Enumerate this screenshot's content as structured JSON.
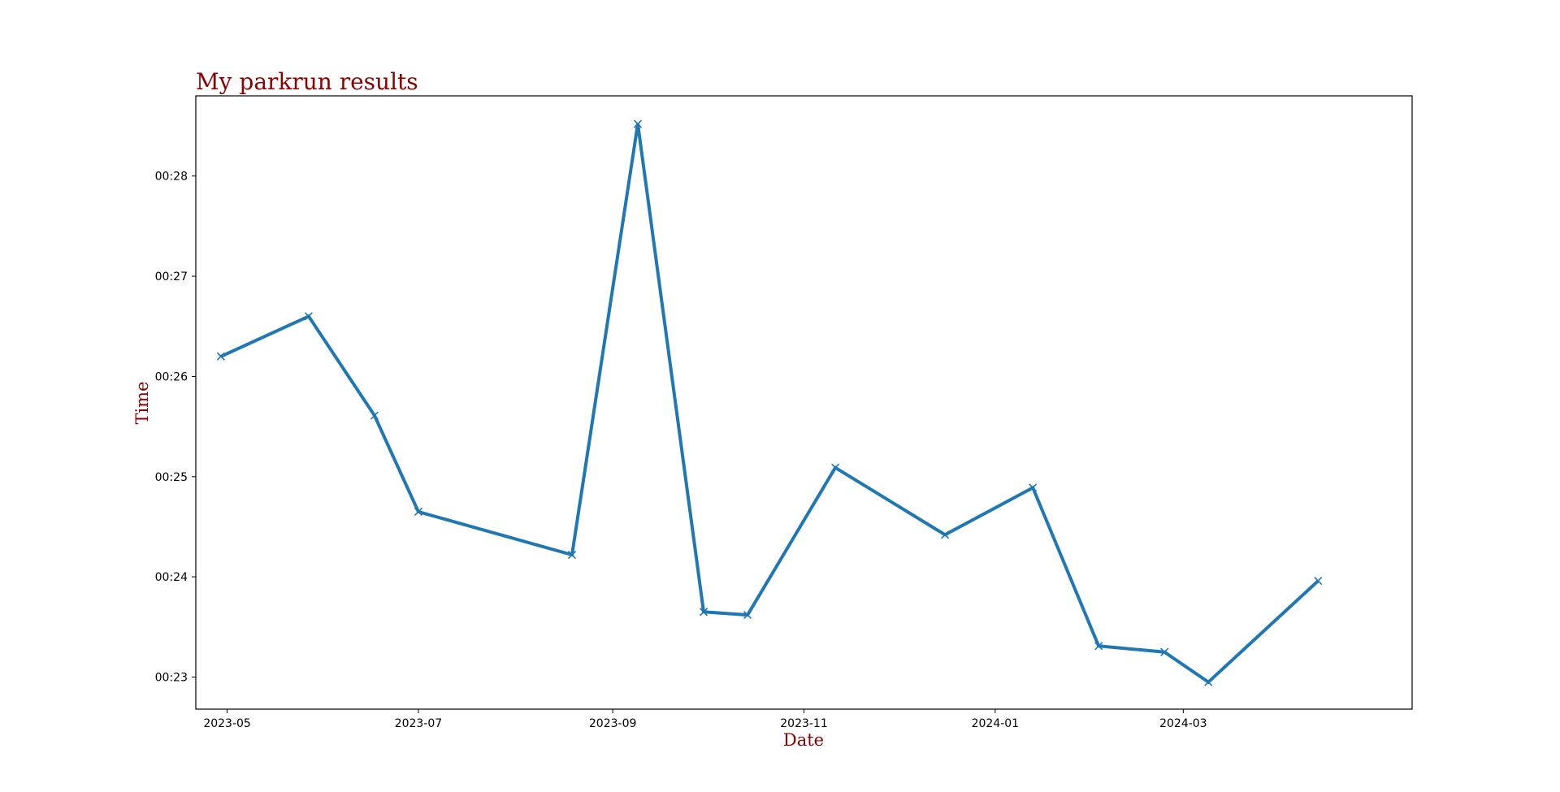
{
  "chart_data": {
    "type": "line",
    "title": "My parkrun results",
    "xlabel": "Date",
    "ylabel": "Time",
    "xlim": [
      "2023-04-21",
      "2024-05-13"
    ],
    "ylim": [
      22.68,
      28.8
    ],
    "x_ticks": [
      {
        "date": "2023-05-01",
        "label": "2023-05"
      },
      {
        "date": "2023-07-01",
        "label": "2023-07"
      },
      {
        "date": "2023-09-01",
        "label": "2023-09"
      },
      {
        "date": "2023-11-01",
        "label": "2023-11"
      },
      {
        "date": "2024-01-01",
        "label": "2024-01"
      },
      {
        "date": "2024-03-01",
        "label": "2024-03"
      }
    ],
    "y_ticks": [
      {
        "value": 23,
        "label": "00:23"
      },
      {
        "value": 24,
        "label": "00:24"
      },
      {
        "value": 25,
        "label": "00:25"
      },
      {
        "value": 26,
        "label": "00:26"
      },
      {
        "value": 27,
        "label": "00:27"
      },
      {
        "value": 28,
        "label": "00:28"
      }
    ],
    "grid": false,
    "series": [
      {
        "color": "#1f77b4",
        "marker": "x",
        "points": [
          {
            "x": "2023-04-29",
            "y": 26.2
          },
          {
            "x": "2023-05-27",
            "y": 26.6
          },
          {
            "x": "2023-06-17",
            "y": 25.61
          },
          {
            "x": "2023-07-01",
            "y": 24.65
          },
          {
            "x": "2023-08-19",
            "y": 24.22
          },
          {
            "x": "2023-09-09",
            "y": 28.52
          },
          {
            "x": "2023-09-30",
            "y": 23.65
          },
          {
            "x": "2023-10-14",
            "y": 23.62
          },
          {
            "x": "2023-11-11",
            "y": 25.09
          },
          {
            "x": "2023-12-16",
            "y": 24.42
          },
          {
            "x": "2024-01-13",
            "y": 24.89
          },
          {
            "x": "2024-02-03",
            "y": 23.31
          },
          {
            "x": "2024-02-24",
            "y": 23.25
          },
          {
            "x": "2024-03-09",
            "y": 22.95
          },
          {
            "x": "2024-04-13",
            "y": 23.96
          }
        ]
      }
    ]
  }
}
